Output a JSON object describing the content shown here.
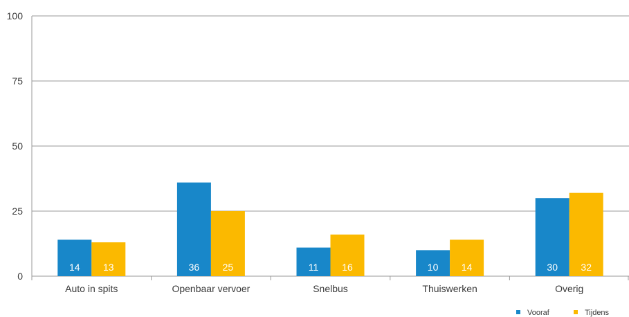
{
  "chart_data": {
    "type": "bar",
    "categories": [
      "Auto in spits",
      "Openbaar vervoer",
      "Snelbus",
      "Thuiswerken",
      "Overig"
    ],
    "series": [
      {
        "name": "Vooraf",
        "values": [
          14,
          36,
          11,
          10,
          30
        ],
        "color": "#1887c9"
      },
      {
        "name": "Tijdens",
        "values": [
          13,
          25,
          16,
          14,
          32
        ],
        "color": "#fbb900"
      }
    ],
    "data_labels": [
      [
        "14",
        "36",
        "11",
        "10",
        "30"
      ],
      [
        "13",
        "25",
        "16",
        "14",
        "32"
      ]
    ],
    "ylim": [
      0,
      100
    ],
    "yticks": [
      0,
      25,
      50,
      75,
      100
    ],
    "grid": true,
    "legend": "bottom-right",
    "colors": {
      "grid": "#999999",
      "axis": "#999999",
      "text": "#3a3a3a",
      "label": "#ffffff"
    }
  }
}
